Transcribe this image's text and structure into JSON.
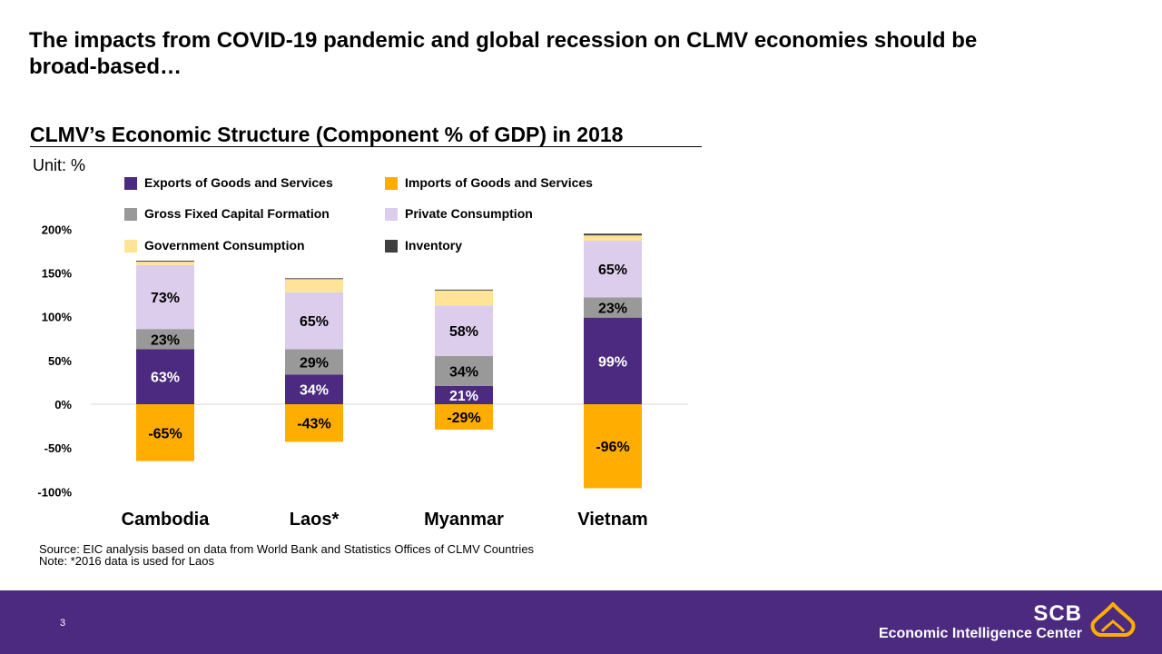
{
  "slide": {
    "title": "The impacts from COVID-19 pandemic and global recession on CLMV economies should be broad-based…",
    "unit": "Unit: %",
    "source": "Source: EIC analysis based on data from World Bank and Statistics Offices of CLMV Countries",
    "note": "Note: *2016 data is used for Laos",
    "page_number": "3"
  },
  "footer": {
    "brand_main": "SCB",
    "brand_sub": "Economic Intelligence Center",
    "logo_icon": "scb-lotus-logo-icon"
  },
  "colors": {
    "exports": "#4b2a80",
    "imports": "#ffad00",
    "gfcf": "#999999",
    "private": "#dccdec",
    "government": "#ffe396",
    "inventory": "#3f3f3f",
    "footer_bg": "#4b2a80"
  },
  "chart_data": {
    "type": "bar",
    "stacked": true,
    "title": "CLMV’s Economic Structure (Component % of GDP) in 2018",
    "categories": [
      "Cambodia",
      "Laos*",
      "Myanmar",
      "Vietnam"
    ],
    "ylim": [
      -100,
      200
    ],
    "yticks": [
      "200%",
      "150%",
      "100%",
      "50%",
      "0%",
      "-50%",
      "-100%"
    ],
    "ytick_values": [
      200,
      150,
      100,
      50,
      0,
      -50,
      -100
    ],
    "legend_position": "top",
    "grid": false,
    "series": [
      {
        "name": "Exports of Goods and Services",
        "key": "exports",
        "values": [
          63,
          34,
          21,
          99
        ],
        "labels": [
          "63%",
          "34%",
          "21%",
          "99%"
        ]
      },
      {
        "name": "Gross Fixed Capital Formation",
        "key": "gfcf",
        "values": [
          23,
          29,
          34,
          23
        ],
        "labels": [
          "23%",
          "29%",
          "34%",
          "23%"
        ]
      },
      {
        "name": "Private Consumption",
        "key": "private",
        "values": [
          73,
          65,
          58,
          65
        ],
        "labels": [
          "73%",
          "65%",
          "58%",
          "65%"
        ]
      },
      {
        "name": "Government Consumption",
        "key": "government",
        "values": [
          4,
          15,
          17,
          6
        ],
        "labels": [
          "",
          "",
          "",
          ""
        ]
      },
      {
        "name": "Inventory",
        "key": "inventory",
        "values": [
          1,
          1,
          1,
          2
        ],
        "labels": [
          "",
          "",
          "",
          ""
        ]
      },
      {
        "name": "Imports of Goods and Services",
        "key": "imports",
        "values": [
          -65,
          -43,
          -29,
          -96
        ],
        "labels": [
          "-65%",
          "-43%",
          "-29%",
          "-96%"
        ]
      }
    ],
    "legend_order": [
      "exports",
      "imports",
      "gfcf",
      "private",
      "government",
      "inventory"
    ]
  }
}
